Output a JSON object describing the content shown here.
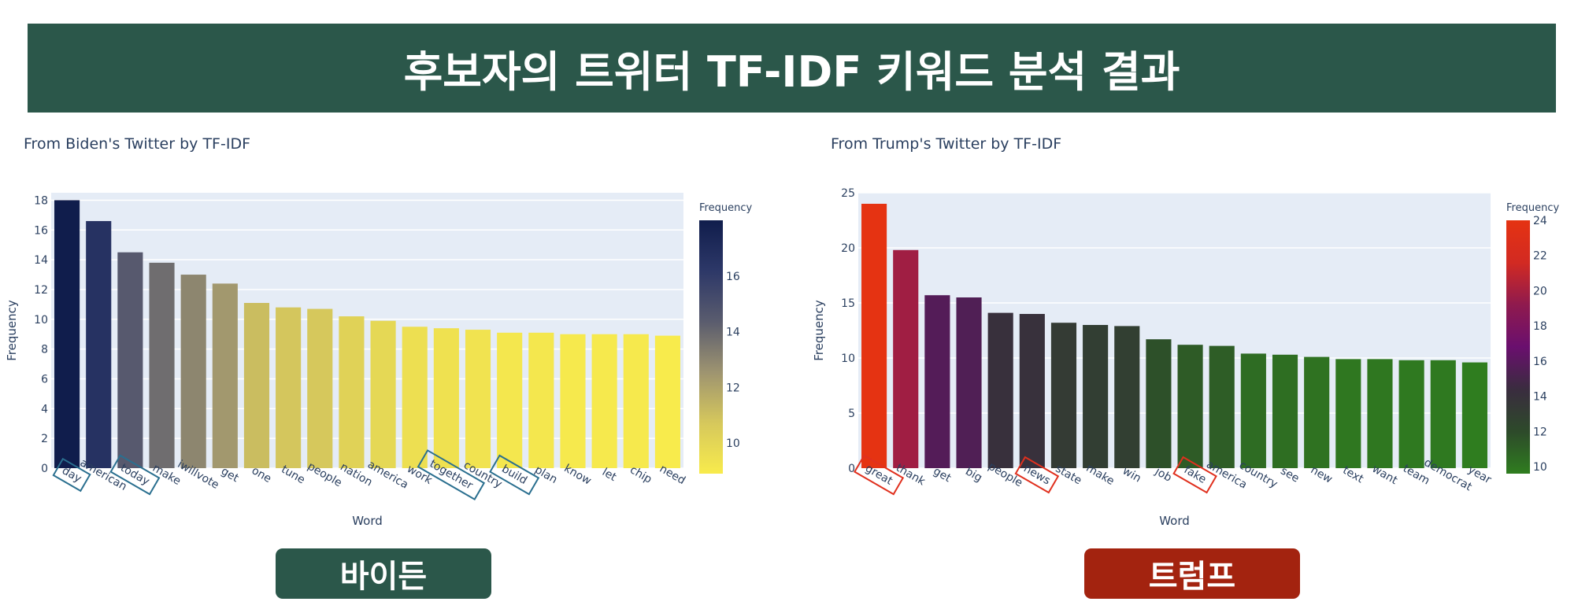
{
  "header": {
    "title": "후보자의 트위터 TF-IDF 키워드 분석 결과"
  },
  "badges": [
    {
      "label": "바이든",
      "color": "#2b574a"
    },
    {
      "label": "트럼프",
      "color": "#a3230f"
    }
  ],
  "chart_data": [
    {
      "type": "bar",
      "title": "From Biden's Twitter by TF-IDF",
      "xlabel": "Word",
      "ylabel": "Frequency",
      "colorbar_title": "Frequency",
      "colorbar_ticks": [
        10,
        12,
        14,
        16
      ],
      "colorscale": [
        "#f8eb4c",
        "#d6c85c",
        "#9e9470",
        "#5a5c6e",
        "#2d3868",
        "#101d4c"
      ],
      "ylim": [
        0,
        18.5
      ],
      "yticks": [
        0,
        2,
        4,
        6,
        8,
        10,
        12,
        14,
        16,
        18
      ],
      "grid": true,
      "categories": [
        "day",
        "american",
        "today",
        "make",
        "iwillvote",
        "get",
        "one",
        "tune",
        "people",
        "nation",
        "america",
        "work",
        "together",
        "country",
        "build",
        "plan",
        "know",
        "let",
        "chip",
        "need"
      ],
      "values": [
        18.0,
        16.6,
        14.5,
        13.8,
        13.0,
        12.4,
        11.1,
        10.8,
        10.7,
        10.2,
        9.9,
        9.5,
        9.4,
        9.3,
        9.1,
        9.1,
        9.0,
        9.0,
        9.0,
        8.9
      ],
      "highlighted": [
        "day",
        "today",
        "together",
        "build"
      ],
      "highlight_color": "#2a6f8f"
    },
    {
      "type": "bar",
      "title": "From Trump's Twitter by TF-IDF",
      "xlabel": "Word",
      "ylabel": "Frequency",
      "colorbar_title": "Frequency",
      "colorbar_ticks": [
        10,
        12,
        14,
        16,
        18,
        20,
        22,
        24
      ],
      "colorscale": [
        "#2f7d1f",
        "#2d4a2a",
        "#3a2c3f",
        "#6a0f6e",
        "#8f1a4e",
        "#d22a22",
        "#e53312"
      ],
      "ylim": [
        0,
        25
      ],
      "yticks": [
        0,
        5,
        10,
        15,
        20,
        25
      ],
      "grid": true,
      "categories": [
        "great",
        "thank",
        "get",
        "big",
        "people",
        "news",
        "state",
        "make",
        "win",
        "job",
        "fake",
        "america",
        "country",
        "see",
        "new",
        "text",
        "want",
        "team",
        "democrat",
        "year"
      ],
      "values": [
        24.0,
        19.8,
        15.7,
        15.5,
        14.1,
        14.0,
        13.2,
        13.0,
        12.9,
        11.7,
        11.2,
        11.1,
        10.4,
        10.3,
        10.1,
        9.9,
        9.9,
        9.8,
        9.8,
        9.6
      ],
      "highlighted": [
        "great",
        "news",
        "fake"
      ],
      "highlight_color": "#e0301e"
    }
  ]
}
